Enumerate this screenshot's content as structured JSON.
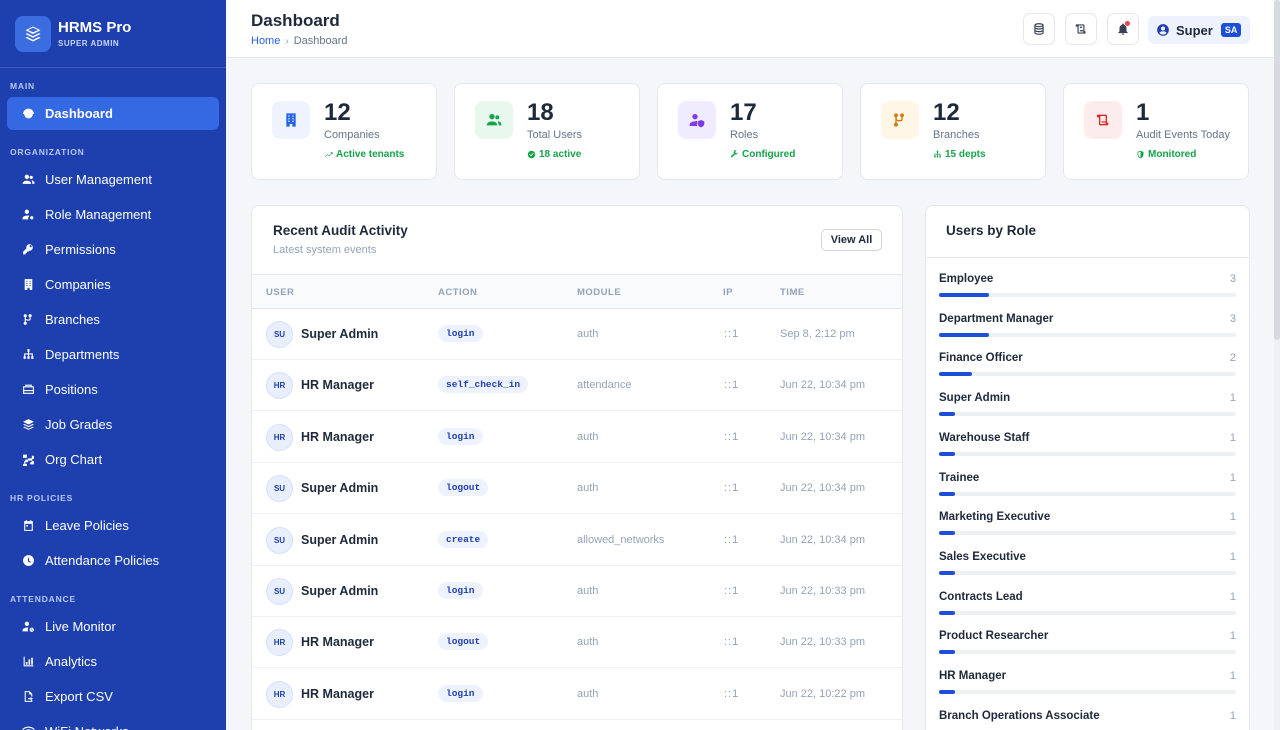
{
  "brand": {
    "name": "HRMS Pro",
    "subtitle": "SUPER ADMIN"
  },
  "sidebar": {
    "sections": [
      {
        "label": "MAIN",
        "items": [
          {
            "label": "Dashboard",
            "icon": "gauge-icon",
            "active": true
          }
        ]
      },
      {
        "label": "ORGANIZATION",
        "items": [
          {
            "label": "User Management",
            "icon": "users-icon"
          },
          {
            "label": "Role Management",
            "icon": "user-gear-icon"
          },
          {
            "label": "Permissions",
            "icon": "key-icon"
          },
          {
            "label": "Companies",
            "icon": "building-icon"
          },
          {
            "label": "Branches",
            "icon": "branch-icon"
          },
          {
            "label": "Departments",
            "icon": "sitemap-icon"
          },
          {
            "label": "Positions",
            "icon": "briefcase-icon"
          },
          {
            "label": "Job Grades",
            "icon": "layers-icon"
          },
          {
            "label": "Org Chart",
            "icon": "diagram-icon"
          }
        ]
      },
      {
        "label": "HR POLICIES",
        "items": [
          {
            "label": "Leave Policies",
            "icon": "calendar-icon"
          },
          {
            "label": "Attendance Policies",
            "icon": "clock-icon"
          }
        ]
      },
      {
        "label": "ATTENDANCE",
        "items": [
          {
            "label": "Live Monitor",
            "icon": "user-clock-icon"
          },
          {
            "label": "Analytics",
            "icon": "chart-icon"
          },
          {
            "label": "Export CSV",
            "icon": "file-export-icon"
          },
          {
            "label": "WiFi Networks",
            "icon": "wifi-icon"
          }
        ]
      }
    ]
  },
  "header": {
    "title": "Dashboard",
    "breadcrumb": {
      "home": "Home",
      "current": "Dashboard"
    },
    "user": {
      "name": "Super",
      "badge": "SA"
    }
  },
  "stats": [
    {
      "value": "12",
      "label": "Companies",
      "sub": "Active tenants",
      "icon": "building-icon",
      "color": "#2563eb",
      "bg": "#eef3fe"
    },
    {
      "value": "18",
      "label": "Total Users",
      "sub": "18 active",
      "icon": "users-icon",
      "color": "#16a34a",
      "bg": "#e9f8ef"
    },
    {
      "value": "17",
      "label": "Roles",
      "sub": "Configured",
      "icon": "user-shield-icon",
      "color": "#7c3aed",
      "bg": "#f1ecfd"
    },
    {
      "value": "12",
      "label": "Branches",
      "sub": "15 depts",
      "icon": "branch-icon",
      "color": "#d97706",
      "bg": "#fef6e6"
    },
    {
      "value": "1",
      "label": "Audit Events Today",
      "sub": "Monitored",
      "icon": "scroll-icon",
      "color": "#dc2626",
      "bg": "#fdecec"
    }
  ],
  "audit": {
    "title": "Recent Audit Activity",
    "subtitle": "Latest system events",
    "view_all": "View All",
    "columns": [
      "USER",
      "ACTION",
      "MODULE",
      "IP",
      "TIME"
    ],
    "rows": [
      {
        "initials": "SU",
        "user": "Super Admin",
        "action": "login",
        "module": "auth",
        "ip": "::1",
        "time": "Sep 8, 2:12 pm"
      },
      {
        "initials": "HR",
        "user": "HR Manager",
        "action": "self_check_in",
        "module": "attendance",
        "ip": "::1",
        "time": "Jun 22, 10:34 pm"
      },
      {
        "initials": "HR",
        "user": "HR Manager",
        "action": "login",
        "module": "auth",
        "ip": "::1",
        "time": "Jun 22, 10:34 pm"
      },
      {
        "initials": "SU",
        "user": "Super Admin",
        "action": "logout",
        "module": "auth",
        "ip": "::1",
        "time": "Jun 22, 10:34 pm"
      },
      {
        "initials": "SU",
        "user": "Super Admin",
        "action": "create",
        "module": "allowed_networks",
        "ip": "::1",
        "time": "Jun 22, 10:34 pm"
      },
      {
        "initials": "SU",
        "user": "Super Admin",
        "action": "login",
        "module": "auth",
        "ip": "::1",
        "time": "Jun 22, 10:33 pm"
      },
      {
        "initials": "HR",
        "user": "HR Manager",
        "action": "logout",
        "module": "auth",
        "ip": "::1",
        "time": "Jun 22, 10:33 pm"
      },
      {
        "initials": "HR",
        "user": "HR Manager",
        "action": "login",
        "module": "auth",
        "ip": "::1",
        "time": "Jun 22, 10:22 pm"
      }
    ]
  },
  "roles": {
    "title": "Users by Role",
    "max": 18,
    "items": [
      {
        "name": "Employee",
        "count": 3
      },
      {
        "name": "Department Manager",
        "count": 3
      },
      {
        "name": "Finance Officer",
        "count": 2
      },
      {
        "name": "Super Admin",
        "count": 1
      },
      {
        "name": "Warehouse Staff",
        "count": 1
      },
      {
        "name": "Trainee",
        "count": 1
      },
      {
        "name": "Marketing Executive",
        "count": 1
      },
      {
        "name": "Sales Executive",
        "count": 1
      },
      {
        "name": "Contracts Lead",
        "count": 1
      },
      {
        "name": "Product Researcher",
        "count": 1
      },
      {
        "name": "HR Manager",
        "count": 1
      },
      {
        "name": "Branch Operations Associate",
        "count": 1
      }
    ]
  }
}
